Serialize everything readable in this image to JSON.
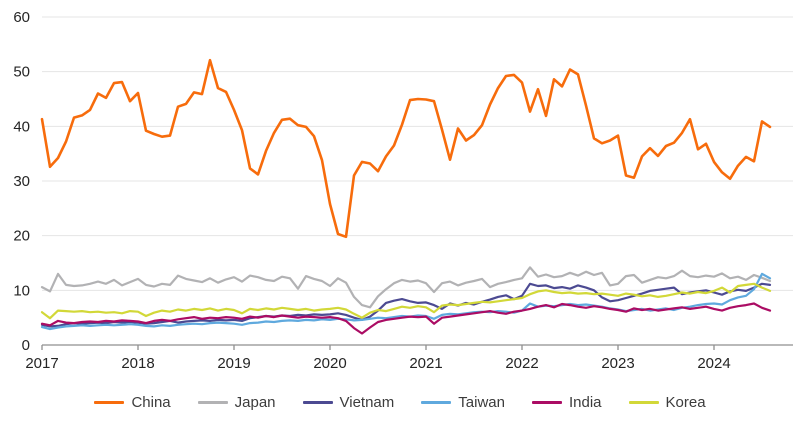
{
  "chart_data": {
    "type": "line",
    "title": "",
    "x_axis": {
      "tick_labels": [
        "2017",
        "2018",
        "2019",
        "2020",
        "2021",
        "2022",
        "2023",
        "2024"
      ],
      "range": {
        "start": "2017-01",
        "end": "2024-08",
        "frequency": "monthly",
        "points": 92
      }
    },
    "y_axis": {
      "min": 0,
      "max": 60,
      "step": 10,
      "tick_labels": [
        "0",
        "10",
        "20",
        "30",
        "40",
        "50",
        "60"
      ]
    },
    "grid": true,
    "legend_position": "bottom",
    "colors": {
      "axis": "#8f8f8f",
      "gridline": "#e5e5e5",
      "label": "#252525"
    },
    "series": [
      {
        "name": "China",
        "color": "#f76c0c",
        "values": [
          41.3,
          32.6,
          34.2,
          37.2,
          41.6,
          42.0,
          43.0,
          46.0,
          45.2,
          47.9,
          48.1,
          44.6,
          46.1,
          39.2,
          38.6,
          38.1,
          38.3,
          43.6,
          44.1,
          46.2,
          45.9,
          52.1,
          47.0,
          46.3,
          43.0,
          39.3,
          32.3,
          31.2,
          35.5,
          38.8,
          41.2,
          41.4,
          40.2,
          39.9,
          38.2,
          33.8,
          25.8,
          20.3,
          19.8,
          31.0,
          33.5,
          33.2,
          31.8,
          34.5,
          36.5,
          40.3,
          44.8,
          45.0,
          44.9,
          44.6,
          39.4,
          33.9,
          39.6,
          37.4,
          38.4,
          40.2,
          44.0,
          47.0,
          49.2,
          49.4,
          48.0,
          42.7,
          46.8,
          41.9,
          48.6,
          47.3,
          50.4,
          49.5,
          43.8,
          37.8,
          36.9,
          37.4,
          38.3,
          31.0,
          30.6,
          34.5,
          36.0,
          34.6,
          36.4,
          37.0,
          38.8,
          41.3,
          35.8,
          36.8,
          33.5,
          31.6,
          30.4,
          32.8,
          34.4,
          33.6,
          40.9,
          39.9
        ]
      },
      {
        "name": "Japan",
        "color": "#b2b2b4",
        "values": [
          10.6,
          9.8,
          13.0,
          11.0,
          10.8,
          10.9,
          11.2,
          11.6,
          11.2,
          11.9,
          10.9,
          11.5,
          12.1,
          11.0,
          10.7,
          11.2,
          11.0,
          12.7,
          12.1,
          11.8,
          11.5,
          12.2,
          11.4,
          12.0,
          12.4,
          11.6,
          12.7,
          12.4,
          11.9,
          11.7,
          12.5,
          12.2,
          10.3,
          12.6,
          12.1,
          11.7,
          10.8,
          12.2,
          11.4,
          8.8,
          7.3,
          6.9,
          8.9,
          10.2,
          11.3,
          11.9,
          11.6,
          11.8,
          11.3,
          9.7,
          11.3,
          11.6,
          10.9,
          11.4,
          11.7,
          12.1,
          10.6,
          11.2,
          11.5,
          11.9,
          12.2,
          14.2,
          12.5,
          12.9,
          12.4,
          12.6,
          13.2,
          12.7,
          13.4,
          12.8,
          13.2,
          10.9,
          11.2,
          12.6,
          12.8,
          11.4,
          11.9,
          12.4,
          12.2,
          12.6,
          13.6,
          12.6,
          12.4,
          12.7,
          12.5,
          13.1,
          12.2,
          12.5,
          11.9,
          12.8,
          12.3,
          11.7
        ]
      },
      {
        "name": "Vietnam",
        "color": "#4c4a92",
        "values": [
          3.7,
          3.4,
          3.5,
          3.8,
          4.0,
          3.9,
          4.0,
          4.1,
          4.0,
          4.2,
          4.1,
          4.2,
          4.1,
          3.9,
          4.0,
          4.2,
          4.4,
          4.1,
          4.3,
          4.4,
          4.5,
          4.4,
          4.6,
          4.5,
          4.6,
          4.4,
          4.9,
          5.1,
          5.3,
          5.2,
          5.4,
          5.3,
          5.5,
          5.4,
          5.6,
          5.5,
          5.6,
          5.8,
          5.5,
          5.0,
          4.6,
          5.2,
          6.3,
          7.7,
          8.1,
          8.4,
          8.0,
          7.7,
          7.8,
          7.3,
          6.6,
          7.6,
          7.2,
          7.7,
          7.4,
          7.9,
          8.3,
          8.8,
          9.1,
          8.4,
          9.0,
          11.2,
          10.8,
          10.9,
          10.4,
          10.6,
          10.3,
          10.9,
          10.5,
          10.0,
          8.7,
          8.0,
          8.2,
          8.6,
          9.0,
          9.4,
          9.9,
          10.1,
          10.3,
          10.5,
          9.3,
          9.6,
          9.8,
          10.0,
          9.6,
          9.2,
          9.8,
          10.1,
          9.9,
          10.5,
          11.2,
          11.0
        ]
      },
      {
        "name": "Taiwan",
        "color": "#5fa9de",
        "values": [
          3.3,
          2.9,
          3.2,
          3.4,
          3.5,
          3.6,
          3.5,
          3.6,
          3.7,
          3.6,
          3.7,
          3.8,
          3.7,
          3.5,
          3.4,
          3.6,
          3.5,
          3.7,
          3.8,
          3.9,
          3.8,
          4.0,
          4.1,
          4.0,
          3.9,
          3.7,
          4.0,
          4.1,
          4.3,
          4.2,
          4.4,
          4.5,
          4.4,
          4.6,
          4.5,
          4.7,
          4.6,
          4.8,
          4.7,
          4.5,
          4.6,
          4.8,
          5.0,
          4.9,
          5.1,
          5.3,
          5.2,
          5.4,
          5.3,
          4.8,
          5.5,
          5.7,
          5.6,
          5.8,
          6.0,
          6.1,
          6.0,
          6.2,
          6.1,
          5.9,
          6.3,
          7.6,
          7.0,
          7.2,
          7.1,
          7.3,
          7.5,
          7.3,
          7.4,
          7.2,
          7.0,
          6.7,
          6.5,
          6.2,
          6.4,
          6.6,
          6.3,
          6.5,
          6.7,
          6.4,
          6.8,
          7.0,
          7.3,
          7.5,
          7.6,
          7.4,
          8.2,
          8.7,
          9.0,
          10.2,
          13.0,
          12.2
        ]
      },
      {
        "name": "India",
        "color": "#ab0c64",
        "values": [
          3.9,
          3.6,
          4.4,
          4.1,
          4.0,
          4.2,
          4.3,
          4.2,
          4.4,
          4.3,
          4.5,
          4.4,
          4.3,
          4.0,
          4.4,
          4.6,
          4.4,
          4.7,
          4.9,
          5.1,
          4.8,
          5.0,
          4.9,
          5.1,
          5.0,
          4.8,
          5.2,
          5.0,
          5.3,
          5.1,
          5.4,
          5.2,
          5.0,
          5.2,
          5.1,
          5.0,
          5.1,
          4.9,
          4.4,
          3.1,
          2.1,
          3.2,
          4.2,
          4.6,
          4.8,
          5.0,
          5.2,
          5.1,
          5.2,
          3.9,
          5.0,
          5.2,
          5.4,
          5.6,
          5.8,
          6.0,
          6.2,
          5.9,
          5.7,
          6.1,
          6.3,
          6.6,
          7.0,
          7.3,
          6.9,
          7.5,
          7.3,
          7.0,
          6.8,
          7.1,
          6.9,
          6.6,
          6.4,
          6.1,
          6.7,
          6.4,
          6.6,
          6.3,
          6.5,
          6.7,
          6.9,
          6.6,
          6.8,
          7.0,
          6.6,
          6.3,
          6.8,
          7.1,
          7.3,
          7.6,
          6.8,
          6.3
        ]
      },
      {
        "name": "Korea",
        "color": "#d2d838",
        "values": [
          6.0,
          4.9,
          6.3,
          6.2,
          6.1,
          6.2,
          6.0,
          6.1,
          5.9,
          6.0,
          5.8,
          6.2,
          6.1,
          5.3,
          5.9,
          6.3,
          6.1,
          6.5,
          6.3,
          6.6,
          6.4,
          6.7,
          6.3,
          6.6,
          6.4,
          5.8,
          6.6,
          6.4,
          6.7,
          6.5,
          6.8,
          6.6,
          6.4,
          6.6,
          6.3,
          6.5,
          6.6,
          6.8,
          6.5,
          5.7,
          5.0,
          5.9,
          6.4,
          6.2,
          6.6,
          7.0,
          6.8,
          7.1,
          6.9,
          6.0,
          7.2,
          7.4,
          7.3,
          7.5,
          7.7,
          7.9,
          7.8,
          8.0,
          8.2,
          8.4,
          8.6,
          9.3,
          9.8,
          10.0,
          9.7,
          9.5,
          9.6,
          9.4,
          9.5,
          9.3,
          9.4,
          9.2,
          9.0,
          9.4,
          9.2,
          8.9,
          9.1,
          8.8,
          9.0,
          9.3,
          9.6,
          9.4,
          9.7,
          9.5,
          9.9,
          10.5,
          9.6,
          10.8,
          11.0,
          11.2,
          10.5,
          9.9
        ]
      }
    ]
  }
}
